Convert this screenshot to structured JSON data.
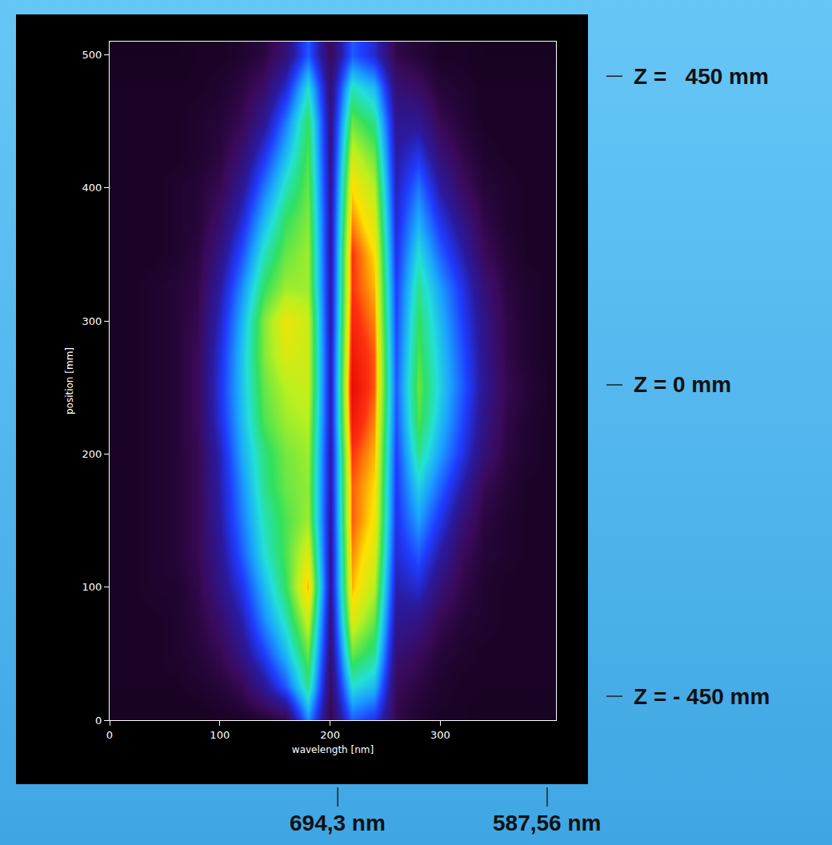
{
  "chart_data": {
    "type": "heatmap",
    "x_label": "wavelength [nm]",
    "y_label": "position [mm]",
    "x": [
      0,
      20,
      40,
      60,
      80,
      100,
      120,
      140,
      160,
      180,
      200,
      220,
      240,
      260,
      280,
      300,
      320,
      340,
      360,
      380,
      400
    ],
    "y": [
      0,
      25,
      50,
      75,
      100,
      125,
      150,
      175,
      200,
      225,
      250,
      275,
      300,
      325,
      350,
      375,
      400,
      425,
      450,
      475,
      500
    ],
    "z": [
      [
        7,
        7,
        7,
        7,
        7,
        8,
        8,
        9,
        12,
        40,
        12,
        35,
        30,
        12,
        9,
        8,
        8,
        7,
        7,
        7,
        7
      ],
      [
        8,
        8,
        8,
        8,
        9,
        10,
        13,
        22,
        35,
        55,
        15,
        50,
        45,
        14,
        11,
        9,
        8,
        8,
        8,
        8,
        8
      ],
      [
        8,
        8,
        8,
        9,
        10,
        13,
        20,
        32,
        45,
        62,
        18,
        62,
        55,
        18,
        14,
        10,
        9,
        8,
        8,
        8,
        8
      ],
      [
        8,
        8,
        8,
        9,
        11,
        16,
        25,
        40,
        52,
        70,
        20,
        72,
        62,
        22,
        20,
        13,
        10,
        9,
        8,
        8,
        8
      ],
      [
        8,
        8,
        9,
        9,
        12,
        20,
        30,
        45,
        58,
        78,
        22,
        78,
        68,
        25,
        28,
        18,
        12,
        9,
        8,
        8,
        8
      ],
      [
        8,
        8,
        9,
        10,
        13,
        22,
        35,
        50,
        60,
        72,
        22,
        80,
        72,
        28,
        35,
        24,
        14,
        10,
        9,
        8,
        8
      ],
      [
        8,
        8,
        9,
        10,
        13,
        24,
        38,
        52,
        60,
        66,
        23,
        82,
        75,
        30,
        42,
        30,
        18,
        11,
        9,
        8,
        8
      ],
      [
        8,
        8,
        9,
        10,
        13,
        25,
        40,
        55,
        62,
        65,
        24,
        82,
        76,
        31,
        48,
        36,
        24,
        13,
        10,
        8,
        8
      ],
      [
        8,
        8,
        9,
        10,
        13,
        26,
        43,
        56,
        63,
        66,
        24,
        84,
        78,
        32,
        55,
        42,
        30,
        18,
        11,
        9,
        8
      ],
      [
        8,
        8,
        9,
        10,
        14,
        29,
        45,
        60,
        66,
        68,
        25,
        88,
        80,
        34,
        60,
        46,
        33,
        20,
        12,
        9,
        8
      ],
      [
        8,
        8,
        9,
        10,
        14,
        30,
        46,
        62,
        68,
        70,
        25,
        90,
        82,
        35,
        62,
        48,
        35,
        22,
        13,
        10,
        8
      ],
      [
        8,
        8,
        9,
        10,
        14,
        29,
        46,
        64,
        72,
        70,
        25,
        88,
        82,
        34,
        60,
        47,
        34,
        21,
        12,
        9,
        8
      ],
      [
        8,
        8,
        9,
        10,
        13,
        27,
        44,
        64,
        74,
        70,
        24,
        86,
        80,
        33,
        58,
        45,
        32,
        20,
        12,
        9,
        8
      ],
      [
        8,
        8,
        9,
        10,
        12,
        24,
        40,
        58,
        66,
        66,
        24,
        84,
        78,
        32,
        55,
        42,
        30,
        18,
        11,
        9,
        8
      ],
      [
        8,
        8,
        8,
        9,
        11,
        20,
        34,
        52,
        62,
        66,
        23,
        84,
        76,
        30,
        50,
        36,
        25,
        14,
        10,
        8,
        8
      ],
      [
        8,
        8,
        8,
        9,
        10,
        16,
        28,
        45,
        58,
        64,
        23,
        80,
        72,
        28,
        44,
        30,
        20,
        12,
        9,
        8,
        8
      ],
      [
        8,
        8,
        8,
        9,
        10,
        13,
        22,
        38,
        52,
        62,
        22,
        76,
        68,
        26,
        38,
        24,
        15,
        10,
        9,
        8,
        8
      ],
      [
        8,
        8,
        8,
        8,
        9,
        11,
        17,
        30,
        45,
        60,
        21,
        70,
        62,
        24,
        30,
        18,
        12,
        9,
        8,
        8,
        8
      ],
      [
        8,
        8,
        8,
        8,
        9,
        10,
        13,
        22,
        38,
        58,
        20,
        62,
        55,
        22,
        22,
        13,
        10,
        8,
        8,
        8,
        8
      ],
      [
        8,
        8,
        8,
        8,
        8,
        9,
        11,
        16,
        28,
        50,
        18,
        52,
        45,
        18,
        15,
        10,
        9,
        8,
        8,
        8,
        8
      ],
      [
        7,
        7,
        7,
        7,
        8,
        8,
        9,
        11,
        18,
        35,
        14,
        35,
        28,
        12,
        10,
        8,
        8,
        7,
        7,
        7,
        7
      ]
    ],
    "zlim": [
      0,
      100
    ],
    "xlim": [
      0,
      405
    ],
    "ylim": [
      0,
      510
    ],
    "xticks": [
      0,
      100,
      200,
      300
    ],
    "yticks": [
      0,
      100,
      200,
      300,
      400,
      500
    ],
    "annotations": [
      {
        "text": "Z =   450 mm",
        "y": 484
      },
      {
        "text": "Z = 0 mm",
        "y": 252
      },
      {
        "text": "Z = - 450 mm",
        "y": 18
      },
      {
        "text": "694,3 nm",
        "x": 207
      },
      {
        "text": "587,56 nm",
        "x": 397
      }
    ]
  }
}
